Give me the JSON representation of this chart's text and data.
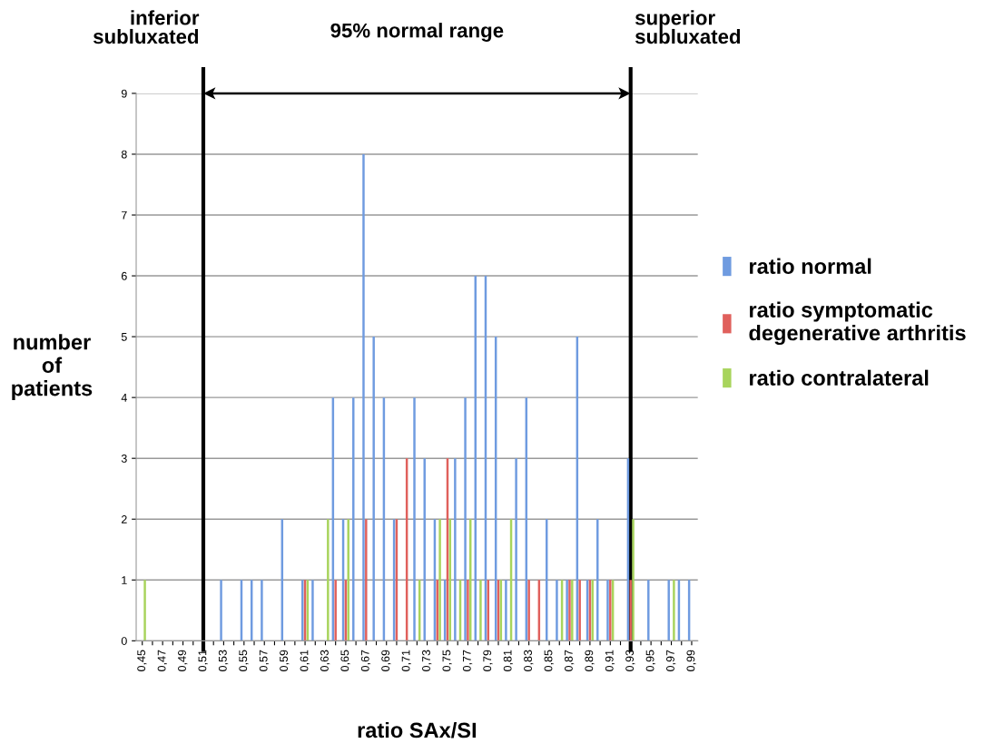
{
  "chart_data": {
    "type": "bar",
    "xlabel": "ratio SAx/SI",
    "ylabel": "number of patients",
    "categories": [
      "0,45",
      null,
      "0,47",
      null,
      "0,49",
      null,
      "0,51",
      null,
      "0,53",
      null,
      "0,55",
      null,
      "0,57",
      null,
      "0,59",
      null,
      "0,61",
      null,
      "0,63",
      null,
      "0,65",
      null,
      "0,67",
      null,
      "0,69",
      null,
      "0,71",
      null,
      "0,73",
      null,
      "0,75",
      null,
      "0,77",
      null,
      "0,79",
      null,
      "0,81",
      null,
      "0,83",
      null,
      "0,85",
      null,
      "0,87",
      null,
      "0,89",
      null,
      "0,91",
      null,
      "0,93",
      null,
      "0,95",
      null,
      "0,97",
      null,
      "0,99"
    ],
    "series": [
      {
        "name": "ratio normal",
        "color": "#6f9be0",
        "values": [
          0,
          0,
          0,
          0,
          0,
          0,
          0,
          0,
          1,
          0,
          1,
          1,
          1,
          0,
          2,
          0,
          1,
          1,
          0,
          4,
          2,
          4,
          8,
          5,
          4,
          2,
          0,
          4,
          3,
          2,
          1,
          3,
          4,
          6,
          6,
          5,
          1,
          3,
          4,
          0,
          2,
          1,
          1,
          5,
          1,
          2,
          1,
          0,
          3,
          0,
          1,
          0,
          1,
          1,
          1
        ]
      },
      {
        "name": "ratio symptomatic degenerative arthritis",
        "color": "#e0605c",
        "values": [
          0,
          0,
          0,
          0,
          0,
          0,
          0,
          0,
          0,
          0,
          0,
          0,
          0,
          0,
          0,
          0,
          1,
          0,
          0,
          1,
          1,
          0,
          2,
          0,
          0,
          2,
          3,
          0,
          0,
          1,
          3,
          0,
          1,
          0,
          1,
          1,
          0,
          0,
          1,
          1,
          0,
          0,
          1,
          1,
          1,
          0,
          1,
          0,
          1,
          0,
          0,
          0,
          0,
          0,
          0
        ]
      },
      {
        "name": "ratio contralateral",
        "color": "#a8d45c",
        "values": [
          1,
          0,
          0,
          0,
          0,
          0,
          0,
          0,
          0,
          0,
          0,
          0,
          0,
          0,
          0,
          0,
          1,
          0,
          2,
          0,
          2,
          0,
          0,
          0,
          0,
          0,
          0,
          1,
          0,
          2,
          2,
          1,
          2,
          1,
          0,
          1,
          2,
          0,
          0,
          0,
          0,
          1,
          1,
          0,
          1,
          0,
          1,
          0,
          2,
          0,
          0,
          0,
          1,
          0,
          0
        ]
      }
    ],
    "ylim": [
      0,
      9
    ],
    "yticks": [
      0,
      1,
      2,
      3,
      4,
      5,
      6,
      7,
      8,
      9
    ],
    "grid": "y",
    "legend": "right",
    "ref_lines": [
      {
        "axis": "x",
        "value": "0,51",
        "label": "inferior subluxated",
        "color": "#000000"
      },
      {
        "axis": "x",
        "value": "0,93",
        "label": "superior subluxated",
        "color": "#000000"
      }
    ],
    "annotations": [
      "95% normal range"
    ]
  }
}
